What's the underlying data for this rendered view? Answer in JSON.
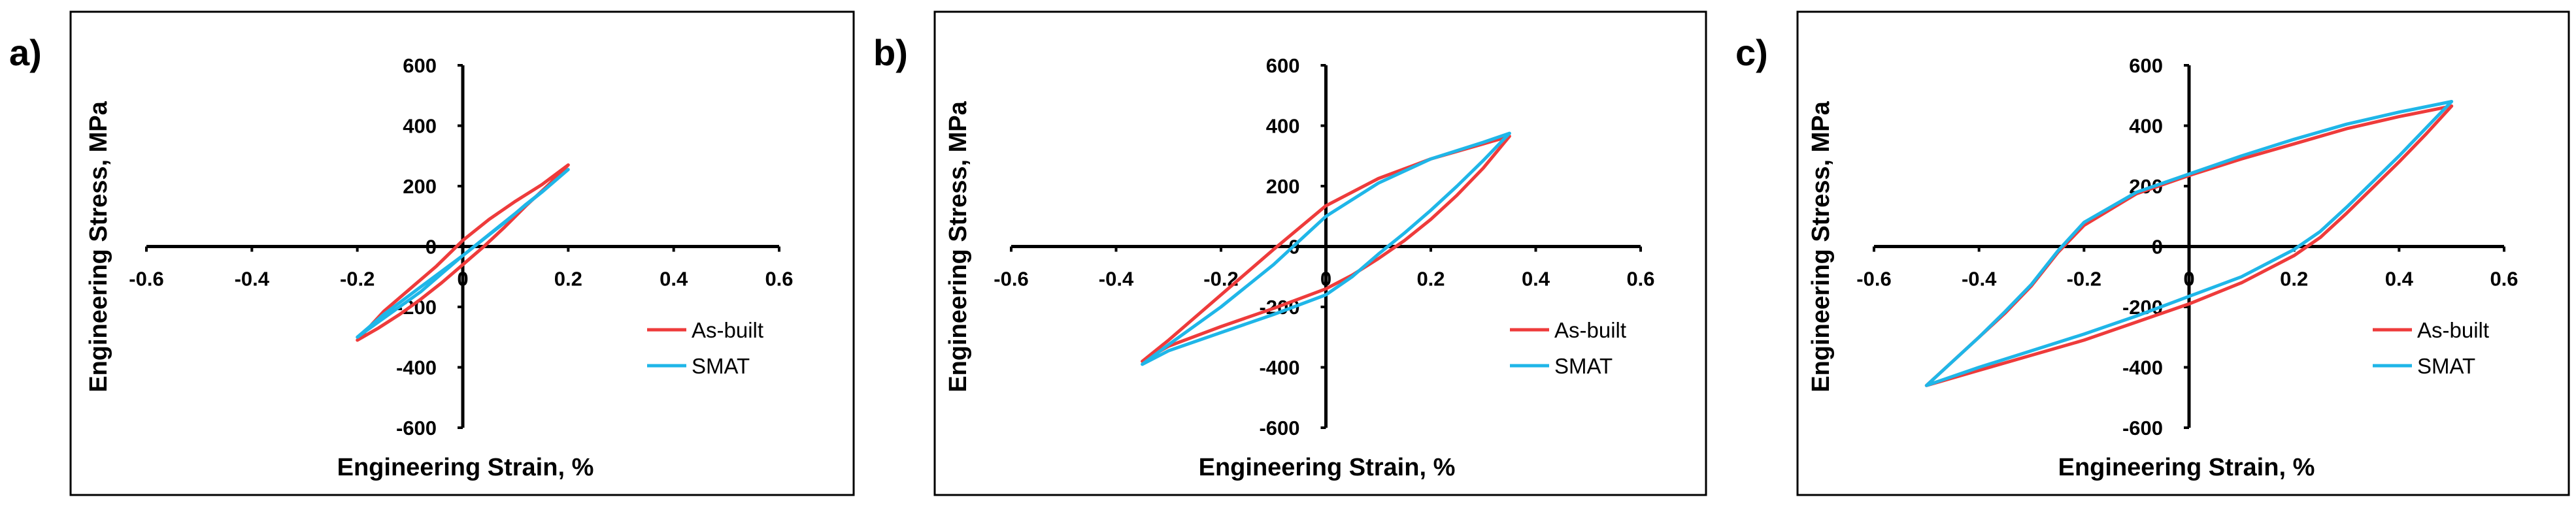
{
  "chart_data": [
    {
      "type": "line",
      "panel_label": "a)",
      "xlabel": "Engineering Strain, %",
      "ylabel": "Engineering Stress, MPa",
      "xlim": [
        -0.6,
        0.6
      ],
      "ylim": [
        -600,
        600
      ],
      "xticks": [
        "-0.6",
        "-0.4",
        "-0.2",
        "0",
        "0.2",
        "0.4",
        "0.6"
      ],
      "yticks": [
        "600",
        "400",
        "200",
        "0",
        "-200",
        "-400",
        "-600"
      ],
      "series": [
        {
          "name": "As-built",
          "color": "#ee3b3b",
          "x": [
            -0.2,
            -0.15,
            -0.1,
            -0.05,
            0.0,
            0.05,
            0.1,
            0.15,
            0.2,
            0.16,
            0.12,
            0.08,
            0.04,
            0.0,
            -0.04,
            -0.08,
            -0.12,
            -0.16,
            -0.2
          ],
          "y": [
            -310,
            -215,
            -140,
            -65,
            20,
            90,
            150,
            205,
            270,
            200,
            135,
            65,
            0,
            -60,
            -120,
            -175,
            -225,
            -270,
            -310
          ]
        },
        {
          "name": "SMAT",
          "color": "#1fb6e8",
          "x": [
            -0.2,
            -0.15,
            -0.1,
            -0.05,
            0.0,
            0.05,
            0.1,
            0.15,
            0.2,
            0.16,
            0.12,
            0.08,
            0.04,
            0.0,
            -0.04,
            -0.08,
            -0.12,
            -0.16,
            -0.2
          ],
          "y": [
            -300,
            -225,
            -160,
            -95,
            -30,
            40,
            110,
            180,
            255,
            195,
            140,
            80,
            25,
            -30,
            -90,
            -150,
            -200,
            -250,
            -300
          ]
        }
      ],
      "legend": {
        "position": "bottom-right",
        "entries": [
          "As-built",
          "SMAT"
        ]
      }
    },
    {
      "type": "line",
      "panel_label": "b)",
      "xlabel": "Engineering Strain, %",
      "ylabel": "Engineering Stress, MPa",
      "xlim": [
        -0.6,
        0.6
      ],
      "ylim": [
        -600,
        600
      ],
      "xticks": [
        "-0.6",
        "-0.4",
        "-0.2",
        "0",
        "0.2",
        "0.4",
        "0.6"
      ],
      "yticks": [
        "600",
        "400",
        "200",
        "0",
        "-200",
        "-400",
        "-600"
      ],
      "series": [
        {
          "name": "As-built",
          "color": "#ee3b3b",
          "x": [
            -0.35,
            -0.3,
            -0.2,
            -0.1,
            0.0,
            0.1,
            0.2,
            0.3,
            0.35,
            0.3,
            0.25,
            0.2,
            0.15,
            0.1,
            0.05,
            0.0,
            -0.1,
            -0.2,
            -0.3,
            -0.35
          ],
          "y": [
            -380,
            -310,
            -160,
            -10,
            135,
            225,
            290,
            340,
            365,
            260,
            170,
            90,
            20,
            -40,
            -95,
            -140,
            -205,
            -265,
            -330,
            -380
          ],
          "closed": true
        },
        {
          "name": "SMAT",
          "color": "#1fb6e8",
          "x": [
            -0.35,
            -0.3,
            -0.2,
            -0.1,
            0.0,
            0.1,
            0.2,
            0.3,
            0.35,
            0.3,
            0.25,
            0.2,
            0.15,
            0.1,
            0.05,
            0.0,
            -0.1,
            -0.2,
            -0.3,
            -0.35
          ],
          "y": [
            -390,
            -325,
            -200,
            -60,
            100,
            210,
            290,
            345,
            375,
            285,
            200,
            120,
            45,
            -25,
            -100,
            -160,
            -225,
            -285,
            -345,
            -390
          ],
          "closed": true
        }
      ],
      "legend": {
        "position": "bottom-right",
        "entries": [
          "As-built",
          "SMAT"
        ]
      }
    },
    {
      "type": "line",
      "panel_label": "c)",
      "xlabel": "Engineering Strain, %",
      "ylabel": "Engineering Stress, MPa",
      "xlim": [
        -0.6,
        0.6
      ],
      "ylim": [
        -600,
        600
      ],
      "xticks": [
        "-0.6",
        "-0.4",
        "-0.2",
        "0",
        "0.2",
        "0.4",
        "0.6"
      ],
      "yticks": [
        "600",
        "400",
        "200",
        "0",
        "-200",
        "-400",
        "-600"
      ],
      "series": [
        {
          "name": "As-built",
          "color": "#ee3b3b",
          "x": [
            -0.5,
            -0.45,
            -0.4,
            -0.35,
            -0.3,
            -0.25,
            -0.2,
            -0.1,
            0.0,
            0.1,
            0.2,
            0.3,
            0.4,
            0.5,
            0.45,
            0.4,
            0.35,
            0.3,
            0.25,
            0.2,
            0.1,
            0.0,
            -0.1,
            -0.2,
            -0.3,
            -0.4,
            -0.5
          ],
          "y": [
            -460,
            -380,
            -300,
            -220,
            -130,
            -20,
            70,
            175,
            235,
            290,
            340,
            390,
            430,
            465,
            370,
            280,
            195,
            110,
            30,
            -30,
            -120,
            -190,
            -250,
            -310,
            -360,
            -410,
            -460
          ],
          "closed": true
        },
        {
          "name": "SMAT",
          "color": "#1fb6e8",
          "x": [
            -0.5,
            -0.45,
            -0.4,
            -0.35,
            -0.3,
            -0.25,
            -0.2,
            -0.1,
            0.0,
            0.1,
            0.2,
            0.3,
            0.4,
            0.5,
            0.45,
            0.4,
            0.35,
            0.3,
            0.25,
            0.2,
            0.1,
            0.0,
            -0.1,
            -0.2,
            -0.3,
            -0.4,
            -0.5
          ],
          "y": [
            -460,
            -380,
            -300,
            -215,
            -125,
            -15,
            80,
            180,
            240,
            300,
            355,
            405,
            445,
            480,
            390,
            300,
            215,
            130,
            50,
            -10,
            -100,
            -165,
            -230,
            -290,
            -345,
            -400,
            -460
          ],
          "closed": true
        }
      ],
      "legend": {
        "position": "bottom-right",
        "entries": [
          "As-built",
          "SMAT"
        ]
      }
    }
  ]
}
